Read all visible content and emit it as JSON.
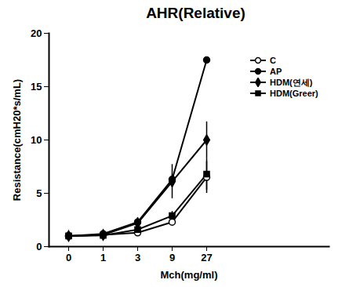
{
  "chart_data": {
    "type": "line",
    "title": "AHR(Relative)",
    "x_label": "Mch(mg/ml)",
    "y_label": "Resistance(cmH20*s/mL)",
    "categories": [
      "0",
      "1",
      "3",
      "9",
      "27"
    ],
    "ylim": [
      0,
      20
    ],
    "yticks": [
      0,
      5,
      10,
      15,
      20
    ],
    "grid": false,
    "legend": "top-right",
    "series": [
      {
        "name": "C",
        "color": "#000000",
        "marker": "circle-open",
        "values": [
          1,
          1.1,
          1.3,
          2.3,
          6.5
        ],
        "errors": [
          0,
          0.05,
          0.1,
          0.3,
          1.5
        ]
      },
      {
        "name": "AP",
        "color": "#000000",
        "marker": "circle",
        "values": [
          1,
          1.2,
          2.3,
          6.3,
          17.5
        ],
        "errors": [
          0,
          0.1,
          0.4,
          0.5,
          0
        ]
      },
      {
        "name": "HDM(연세)",
        "color": "#000000",
        "marker": "diamond",
        "values": [
          1,
          1.1,
          2.2,
          6.1,
          10
        ],
        "errors": [
          0,
          0.1,
          0.3,
          1.6,
          1.7
        ]
      },
      {
        "name": "HDM(Greer)",
        "color": "#000000",
        "marker": "square",
        "values": [
          1,
          1.05,
          1.6,
          2.9,
          6.8
        ],
        "errors": [
          0,
          0.05,
          0.2,
          0.4,
          1.5
        ]
      }
    ]
  }
}
